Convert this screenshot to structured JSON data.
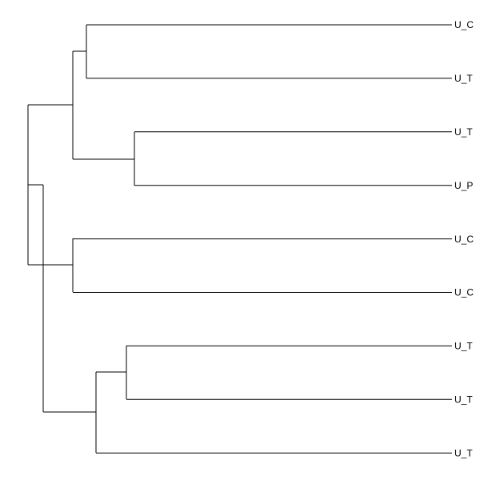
{
  "leaves": [
    {
      "label": "U_C"
    },
    {
      "label": "U_T"
    },
    {
      "label": "U_T"
    },
    {
      "label": "U_P"
    },
    {
      "label": "U_C"
    },
    {
      "label": "U_C"
    },
    {
      "label": "U_T"
    },
    {
      "label": "U_T"
    },
    {
      "label": "U_T"
    }
  ]
}
